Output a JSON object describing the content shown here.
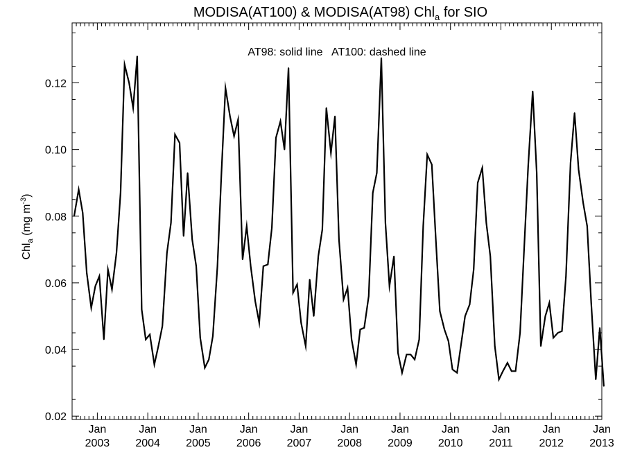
{
  "title": {
    "prefix": "MODISA(AT100) & MODISA(AT98)  Chl",
    "sub": "a",
    "suffix": " for SIO"
  },
  "annotation": "AT98: solid line   AT100: dashed line",
  "ylabel": {
    "main": "Chl",
    "sub": "a",
    "unit": " (mg m",
    "sup": "-3",
    "close": ")"
  },
  "xtick_top_label": "Jan",
  "colors": {
    "line": "#000000",
    "axis": "#000000",
    "background": "#ffffff"
  },
  "chart_data": {
    "type": "line",
    "title": "MODISA(AT100) & MODISA(AT98) Chla for SIO",
    "ylabel": "Chla (mg m-3)",
    "xlabel": "",
    "x_unit": "year",
    "xlim": [
      2002.5,
      2013.0
    ],
    "ylim": [
      0.019,
      0.138
    ],
    "yticks": [
      0.02,
      0.04,
      0.06,
      0.08,
      0.1,
      0.12
    ],
    "ytick_labels": [
      "0.02",
      "0.04",
      "0.06",
      "0.08",
      "0.10",
      "0.12"
    ],
    "xticks": [
      2003,
      2004,
      2005,
      2006,
      2007,
      2008,
      2009,
      2010,
      2011,
      2012,
      2013
    ],
    "xtick_labels": [
      "2003",
      "2004",
      "2005",
      "2006",
      "2007",
      "2008",
      "2009",
      "2010",
      "2011",
      "2012",
      "2013"
    ],
    "grid": false,
    "legend": "none",
    "series": [
      {
        "style": "solid",
        "x": [
          2002.54,
          2002.63,
          2002.71,
          2002.79,
          2002.88,
          2002.96,
          2003.04,
          2003.13,
          2003.21,
          2003.29,
          2003.38,
          2003.46,
          2003.54,
          2003.63,
          2003.71,
          2003.79,
          2003.88,
          2003.96,
          2004.04,
          2004.13,
          2004.21,
          2004.29,
          2004.38,
          2004.46,
          2004.54,
          2004.63,
          2004.71,
          2004.79,
          2004.88,
          2004.96,
          2005.04,
          2005.13,
          2005.21,
          2005.29,
          2005.38,
          2005.46,
          2005.54,
          2005.63,
          2005.71,
          2005.79,
          2005.88,
          2005.96,
          2006.04,
          2006.13,
          2006.21,
          2006.29,
          2006.38,
          2006.46,
          2006.54,
          2006.63,
          2006.71,
          2006.79,
          2006.88,
          2006.96,
          2007.04,
          2007.13,
          2007.21,
          2007.29,
          2007.38,
          2007.46,
          2007.54,
          2007.63,
          2007.71,
          2007.79,
          2007.88,
          2007.96,
          2008.04,
          2008.13,
          2008.21,
          2008.29,
          2008.38,
          2008.46,
          2008.54,
          2008.63,
          2008.71,
          2008.79,
          2008.88,
          2008.96,
          2009.04,
          2009.13,
          2009.21,
          2009.29,
          2009.38,
          2009.46,
          2009.54,
          2009.63,
          2009.71,
          2009.79,
          2009.88,
          2009.96,
          2010.04,
          2010.13,
          2010.21,
          2010.29,
          2010.38,
          2010.46,
          2010.54,
          2010.63,
          2010.71,
          2010.79,
          2010.88,
          2010.96,
          2011.04,
          2011.13,
          2011.21,
          2011.29,
          2011.38,
          2011.46,
          2011.54,
          2011.63,
          2011.71,
          2011.79,
          2011.88,
          2011.96,
          2012.04,
          2012.13,
          2012.21,
          2012.29,
          2012.38,
          2012.46,
          2012.54,
          2012.63,
          2012.71,
          2012.79,
          2012.88,
          2012.96,
          2013.04
        ],
        "y": [
          0.08,
          0.088,
          0.081,
          0.063,
          0.0525,
          0.059,
          0.062,
          0.043,
          0.064,
          0.058,
          0.069,
          0.087,
          0.1255,
          0.12,
          0.1125,
          0.128,
          0.052,
          0.043,
          0.0445,
          0.0355,
          0.041,
          0.047,
          0.069,
          0.078,
          0.1045,
          0.102,
          0.074,
          0.093,
          0.073,
          0.065,
          0.0435,
          0.0345,
          0.037,
          0.044,
          0.065,
          0.093,
          0.1185,
          0.11,
          0.104,
          0.109,
          0.067,
          0.077,
          0.065,
          0.0545,
          0.048,
          0.065,
          0.0655,
          0.0765,
          0.1035,
          0.1085,
          0.1,
          0.1245,
          0.057,
          0.0595,
          0.048,
          0.041,
          0.061,
          0.05,
          0.068,
          0.076,
          0.1125,
          0.099,
          0.11,
          0.073,
          0.055,
          0.0585,
          0.043,
          0.0355,
          0.046,
          0.0465,
          0.056,
          0.087,
          0.093,
          0.1275,
          0.078,
          0.059,
          0.068,
          0.039,
          0.033,
          0.0385,
          0.0385,
          0.037,
          0.043,
          0.077,
          0.0985,
          0.0955,
          0.073,
          0.0515,
          0.046,
          0.0425,
          0.034,
          0.033,
          0.0415,
          0.05,
          0.0535,
          0.064,
          0.09,
          0.0945,
          0.078,
          0.068,
          0.041,
          0.031,
          0.0335,
          0.036,
          0.0335,
          0.0335,
          0.045,
          0.07,
          0.095,
          0.1175,
          0.093,
          0.041,
          0.05,
          0.054,
          0.0435,
          0.045,
          0.0455,
          0.062,
          0.096,
          0.111,
          0.094,
          0.084,
          0.077,
          0.054,
          0.031,
          0.0465,
          0.029
        ]
      }
    ]
  }
}
